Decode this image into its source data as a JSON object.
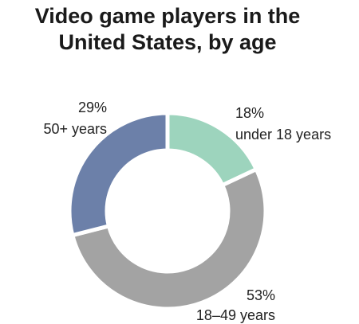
{
  "chart_data": {
    "type": "donut",
    "title": "Video game players in the United States, by age",
    "categories": [
      "under 18 years",
      "18–49 years",
      "50+ years"
    ],
    "values": [
      18,
      53,
      29
    ],
    "value_labels": [
      "18%",
      "53%",
      "29%"
    ],
    "colors": [
      "#9dd4bd",
      "#a3a3a3",
      "#6c80a9"
    ]
  }
}
